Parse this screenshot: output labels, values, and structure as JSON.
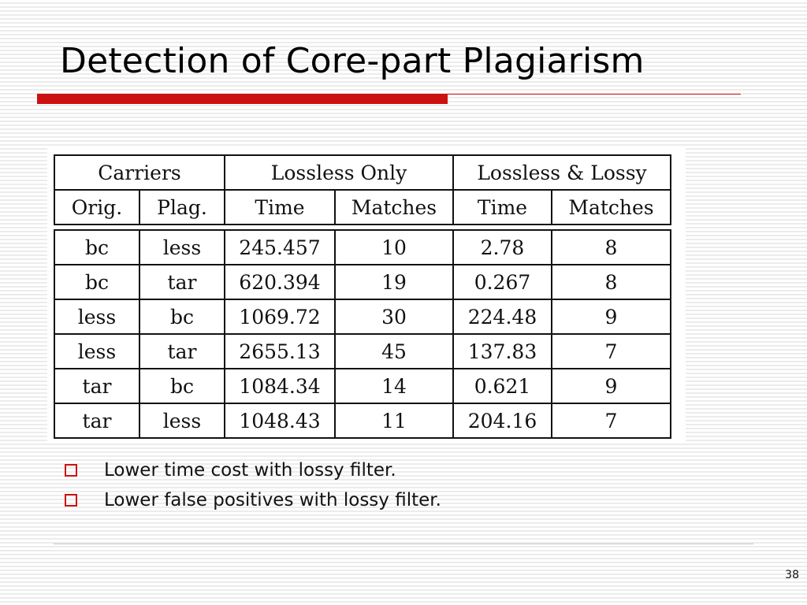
{
  "slide": {
    "title": "Detection of Core-part Plagiarism",
    "page_number": "38",
    "accent_color": "#cc1111"
  },
  "table": {
    "group_headers": [
      "Carriers",
      "Lossless Only",
      "Lossless & Lossy"
    ],
    "column_headers": [
      "Orig.",
      "Plag.",
      "Time",
      "Matches",
      "Time",
      "Matches"
    ],
    "rows": [
      [
        "bc",
        "less",
        "245.457",
        "10",
        "2.78",
        "8"
      ],
      [
        "bc",
        "tar",
        "620.394",
        "19",
        "0.267",
        "8"
      ],
      [
        "less",
        "bc",
        "1069.72",
        "30",
        "224.48",
        "9"
      ],
      [
        "less",
        "tar",
        "2655.13",
        "45",
        "137.83",
        "7"
      ],
      [
        "tar",
        "bc",
        "1084.34",
        "14",
        "0.621",
        "9"
      ],
      [
        "tar",
        "less",
        "1048.43",
        "11",
        "204.16",
        "7"
      ]
    ]
  },
  "bullets": [
    {
      "icon": "hollow-square-bullet-icon",
      "text": "Lower time cost with lossy filter."
    },
    {
      "icon": "hollow-square-bullet-icon",
      "text": "Lower false positives with lossy filter."
    }
  ]
}
